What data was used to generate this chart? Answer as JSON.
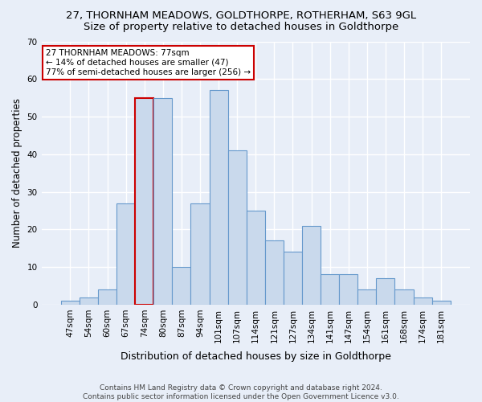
{
  "title": "27, THORNHAM MEADOWS, GOLDTHORPE, ROTHERHAM, S63 9GL",
  "subtitle": "Size of property relative to detached houses in Goldthorpe",
  "xlabel": "Distribution of detached houses by size in Goldthorpe",
  "ylabel": "Number of detached properties",
  "categories": [
    "47sqm",
    "54sqm",
    "60sqm",
    "67sqm",
    "74sqm",
    "80sqm",
    "87sqm",
    "94sqm",
    "101sqm",
    "107sqm",
    "114sqm",
    "121sqm",
    "127sqm",
    "134sqm",
    "141sqm",
    "147sqm",
    "154sqm",
    "161sqm",
    "168sqm",
    "174sqm",
    "181sqm"
  ],
  "values": [
    1,
    2,
    4,
    27,
    55,
    55,
    10,
    27,
    57,
    41,
    25,
    17,
    14,
    21,
    8,
    8,
    4,
    7,
    4,
    2,
    1
  ],
  "bar_color": "#c9d9ec",
  "bar_edge_color": "#6699cc",
  "highlight_bar_index": 4,
  "highlight_edge_color": "#cc0000",
  "bg_color": "#e8eef8",
  "grid_color": "#ffffff",
  "annotation_text": "27 THORNHAM MEADOWS: 77sqm\n← 14% of detached houses are smaller (47)\n77% of semi-detached houses are larger (256) →",
  "annotation_box_color": "#ffffff",
  "annotation_box_edge_color": "#cc0000",
  "ylim": [
    0,
    70
  ],
  "yticks": [
    0,
    10,
    20,
    30,
    40,
    50,
    60,
    70
  ],
  "footnote": "Contains HM Land Registry data © Crown copyright and database right 2024.\nContains public sector information licensed under the Open Government Licence v3.0.",
  "title_fontsize": 9.5,
  "subtitle_fontsize": 9.5,
  "xlabel_fontsize": 9,
  "ylabel_fontsize": 8.5,
  "tick_fontsize": 7.5,
  "annotation_fontsize": 7.5,
  "footnote_fontsize": 6.5
}
